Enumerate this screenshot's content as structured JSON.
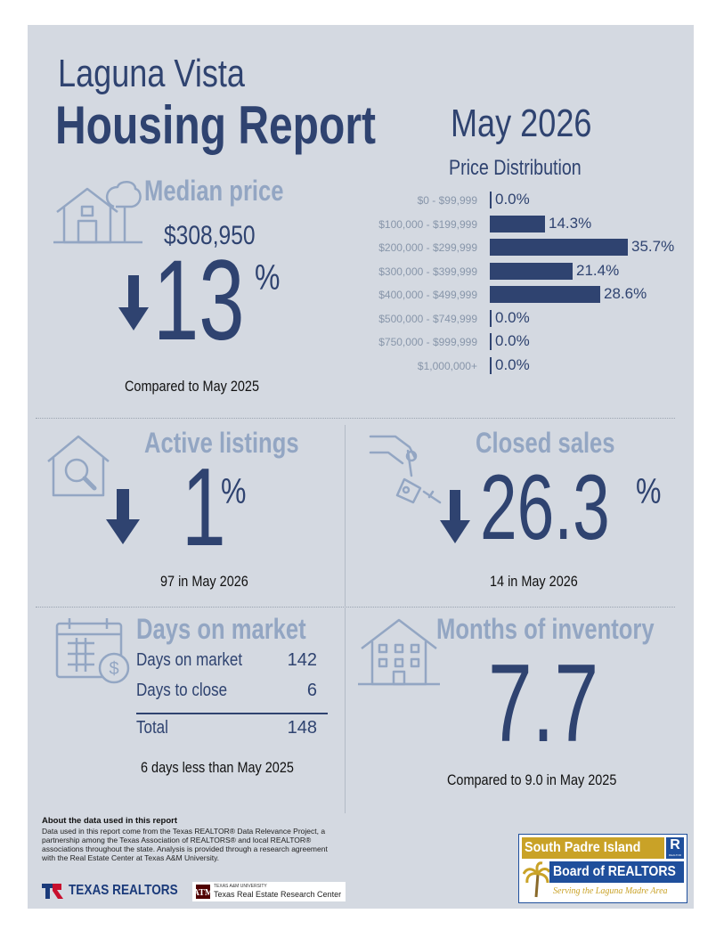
{
  "header": {
    "city": "Laguna Vista",
    "title": "Housing Report",
    "period": "May 2026"
  },
  "median_price": {
    "label": "Median price",
    "value": "$308,950",
    "change_direction": "down",
    "change_number": "13",
    "change_unit": "%",
    "comparison": "Compared to May 2025"
  },
  "price_distribution": {
    "title": "Price Distribution",
    "chart_data": {
      "type": "bar",
      "orientation": "horizontal",
      "categories": [
        "$0 - $99,999",
        "$100,000 - $199,999",
        "$200,000 - $299,999",
        "$300,000 - $399,999",
        "$400,000 - $499,999",
        "$500,000 - $749,999",
        "$750,000 - $999,999",
        "$1,000,000+"
      ],
      "values": [
        0.0,
        14.3,
        35.7,
        21.4,
        28.6,
        0.0,
        0.0,
        0.0
      ],
      "value_labels": [
        "0.0%",
        "14.3%",
        "35.7%",
        "21.4%",
        "28.6%",
        "0.0%",
        "0.0%",
        "0.0%"
      ],
      "title": "Price Distribution",
      "xlabel": "",
      "ylabel": ""
    }
  },
  "active_listings": {
    "label": "Active listings",
    "change_direction": "down",
    "change_number": "1",
    "change_unit": "%",
    "note": "97 in May 2026"
  },
  "closed_sales": {
    "label": "Closed sales",
    "change_direction": "down",
    "change_number": "26.3",
    "change_unit": "%",
    "note": "14 in May 2026"
  },
  "days_on_market": {
    "label": "Days on market",
    "rows": [
      {
        "label": "Days on market",
        "value": "142"
      },
      {
        "label": "Days to close",
        "value": "6"
      }
    ],
    "total_label": "Total",
    "total_value": "148",
    "note": "6 days less than May 2025"
  },
  "months_inventory": {
    "label": "Months of inventory",
    "value": "7.7",
    "note": "Compared to 9.0 in May 2025"
  },
  "footer": {
    "about_title": "About the data used in this report",
    "about_text": "Data used in this report come from the Texas REALTOR® Data Relevance Project, a partnership among the Texas Association of REALTORS® and local REALTOR® associations throughout the state. Analysis is provided through a research agreement with the Real Estate Center at Texas A&M University.",
    "texas_realtors": "TEXAS REALTORS",
    "tamu_small": "TEXAS A&M UNIVERSITY",
    "tamu_center": "Texas Real Estate Research Center",
    "board_line1": "South Padre Island",
    "board_line2": "Board of REALTORS",
    "board_tagline": "Serving the Laguna Madre Area",
    "board_r": "R",
    "board_r_small": "REALTOR"
  },
  "colors": {
    "navy": "#2f4370",
    "pale_blue": "#93a6c3",
    "panel_bg": "#d4d9e1",
    "board_gold": "#c9a227",
    "board_blue": "#1f4f9c"
  }
}
